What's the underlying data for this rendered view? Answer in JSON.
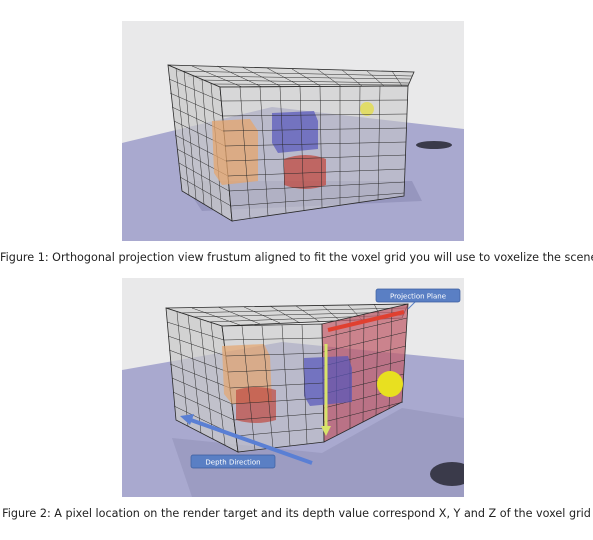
{
  "figures": [
    {
      "caption": "Figure 1: Orthogonal projection view frustum aligned to fit the voxel grid you will use to voxelize the scene."
    },
    {
      "caption": "Figure 2: A pixel location on the render target and its depth value correspond X, Y and Z of the voxel grid",
      "callouts": {
        "projection_plane": "Projection Plane",
        "depth_direction": "Depth Direction"
      }
    }
  ],
  "colors": {
    "background": "#e9e9ea",
    "ground_plane": "#a9a9cf",
    "voxel_grid_face": "#c9c9c9",
    "voxel_grid_line": "#2a2a2a",
    "orange_box": "#e5a56e",
    "blue_box": "#5555bb",
    "red_cylinder": "#c04a40",
    "yellow_sphere": "#e8e020",
    "projection_plane": "#c0606e",
    "callout_fill": "#5a7fc4",
    "depth_arrow": "#5a7fd4",
    "y_arrow": "#d8e46a",
    "x_arrow": "#e04030"
  }
}
